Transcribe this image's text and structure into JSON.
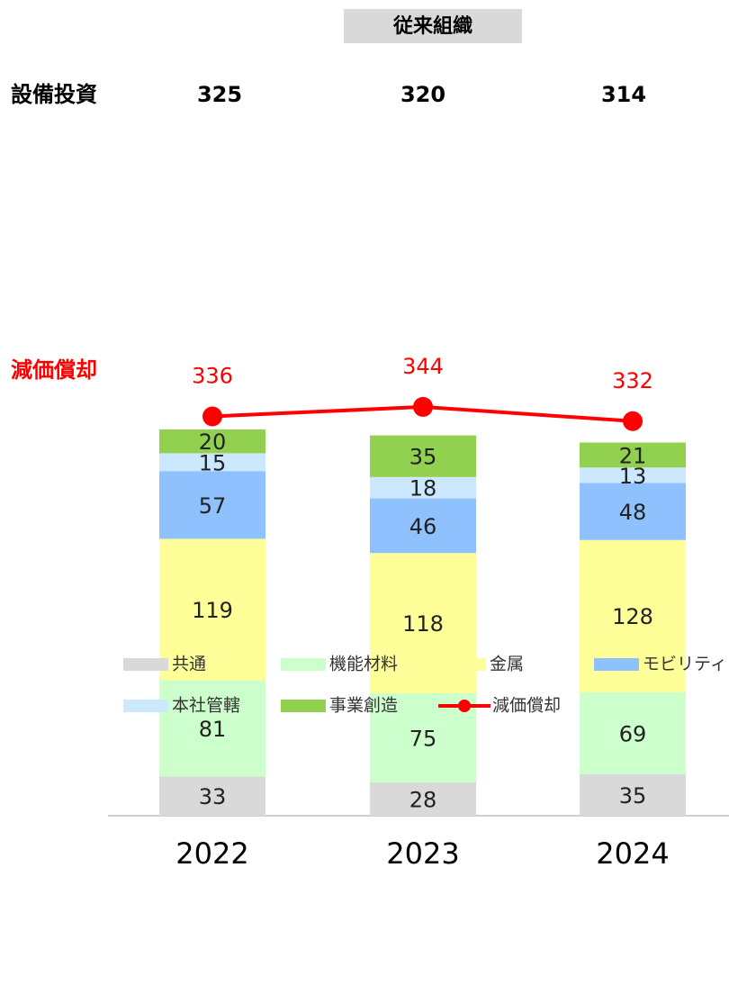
{
  "chart_data": {
    "type": "bar",
    "stacked": true,
    "header": "従来組織",
    "capex": {
      "label": "設備投資",
      "values": [
        325,
        320,
        314
      ]
    },
    "categories": [
      "2022",
      "2023",
      "2024"
    ],
    "series": [
      {
        "name": "共通",
        "color": "#d9d9d9",
        "values": [
          33,
          28,
          35
        ]
      },
      {
        "name": "機能材料",
        "color": "#ccffcc",
        "values": [
          81,
          75,
          69
        ]
      },
      {
        "name": "金属",
        "color": "#ffff99",
        "values": [
          119,
          118,
          128
        ]
      },
      {
        "name": "モビリティ",
        "color": "#8fc1ff",
        "values": [
          57,
          46,
          48
        ]
      },
      {
        "name": "本社管轄",
        "color": "#cce8ff",
        "values": [
          15,
          18,
          13
        ]
      },
      {
        "name": "事業創造",
        "color": "#92d050",
        "values": [
          20,
          35,
          21
        ]
      }
    ],
    "line": {
      "name": "減価償却",
      "color": "#ff0000",
      "values": [
        336,
        344,
        332
      ]
    },
    "ylim": [
      0,
      400
    ]
  }
}
